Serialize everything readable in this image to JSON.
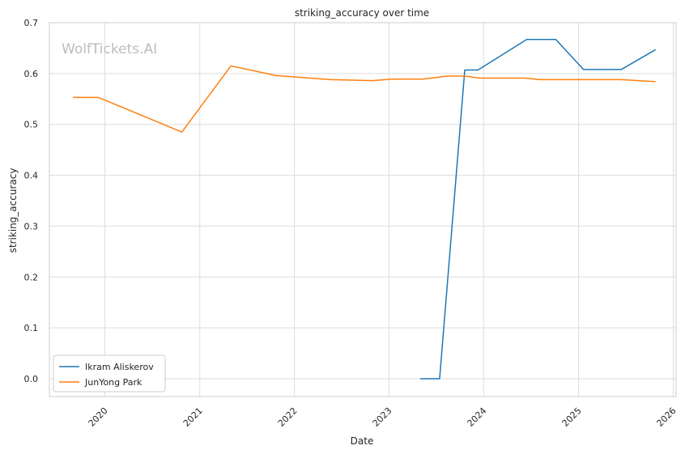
{
  "chart_data": {
    "type": "line",
    "title": "striking_accuracy over time",
    "xlabel": "Date",
    "ylabel": "striking_accuracy",
    "watermark": "WolfTickets.AI",
    "ylim": [
      -0.035,
      0.7
    ],
    "xlim": [
      "2019-06-01",
      "2026-01-12"
    ],
    "yticks": [
      0.0,
      0.1,
      0.2,
      0.3,
      0.4,
      0.5,
      0.6,
      0.7
    ],
    "ytick_labels": [
      "0.0",
      "0.1",
      "0.2",
      "0.3",
      "0.4",
      "0.5",
      "0.6",
      "0.7"
    ],
    "xticks": [
      "2020-01-01",
      "2021-01-01",
      "2022-01-01",
      "2023-01-01",
      "2024-01-01",
      "2025-01-01",
      "2026-01-01"
    ],
    "xtick_labels": [
      "2020",
      "2021",
      "2022",
      "2023",
      "2024",
      "2025",
      "2026"
    ],
    "grid": true,
    "legend_position": "lower-left",
    "series": [
      {
        "name": "Ikram Aliskerov",
        "color": "#1f77b4",
        "points": [
          {
            "x": "2023-05-01",
            "y": 0.0
          },
          {
            "x": "2023-07-15",
            "y": 0.0
          },
          {
            "x": "2023-10-20",
            "y": 0.607
          },
          {
            "x": "2023-12-10",
            "y": 0.607
          },
          {
            "x": "2024-06-15",
            "y": 0.667
          },
          {
            "x": "2024-10-05",
            "y": 0.667
          },
          {
            "x": "2025-01-20",
            "y": 0.608
          },
          {
            "x": "2025-06-15",
            "y": 0.608
          },
          {
            "x": "2025-10-25",
            "y": 0.647
          }
        ]
      },
      {
        "name": "JunYong Park",
        "color": "#ff7f0e",
        "points": [
          {
            "x": "2019-08-31",
            "y": 0.553
          },
          {
            "x": "2019-12-07",
            "y": 0.553
          },
          {
            "x": "2020-10-24",
            "y": 0.485
          },
          {
            "x": "2021-05-01",
            "y": 0.615
          },
          {
            "x": "2021-10-23",
            "y": 0.596
          },
          {
            "x": "2022-05-21",
            "y": 0.588
          },
          {
            "x": "2022-10-29",
            "y": 0.586
          },
          {
            "x": "2023-01-14",
            "y": 0.589
          },
          {
            "x": "2023-05-13",
            "y": 0.589
          },
          {
            "x": "2023-08-12",
            "y": 0.595
          },
          {
            "x": "2023-10-21",
            "y": 0.595
          },
          {
            "x": "2023-12-16",
            "y": 0.591
          },
          {
            "x": "2024-06-08",
            "y": 0.591
          },
          {
            "x": "2024-08-03",
            "y": 0.588
          },
          {
            "x": "2025-06-14",
            "y": 0.588
          },
          {
            "x": "2025-10-25",
            "y": 0.584
          }
        ]
      }
    ]
  }
}
